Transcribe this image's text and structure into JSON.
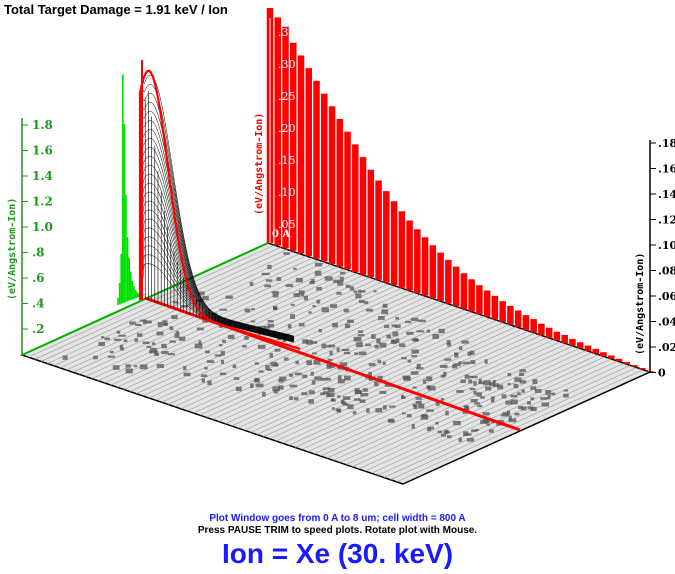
{
  "title": "Total Target Damage = 1.91 keV / Ion",
  "info": {
    "plot_window": "Plot Window goes from 0 A to 8 um;  cell width = 800 A",
    "hint": "Press PAUSE TRIM to speed plots.    Rotate plot with Mouse."
  },
  "ion_label": "Ion = Xe (30. keV)",
  "colors": {
    "left_axis": "#1a9a1a",
    "right_peak": "#ff0000",
    "left_peak": "#00e000",
    "info_text": "#1a1aff",
    "floor": "#d8d8d8",
    "damage_map": "#555555"
  },
  "chart_data": {
    "type": "area",
    "axes": {
      "left": {
        "label": "(eV/Angstrom-Ion)",
        "ticks": [
          "1.8",
          "1.6",
          "1.4",
          "1.2",
          "1.0",
          ".8",
          ".6",
          ".4",
          ".2"
        ],
        "range": [
          0,
          1.8
        ]
      },
      "back": {
        "label": "(eV/Angstrom-Ion)",
        "ticks": [
          ".35",
          ".30",
          ".25",
          ".20",
          ".15",
          ".10",
          ".05"
        ],
        "origin_label": "0 A",
        "range": [
          0,
          0.35
        ]
      },
      "right": {
        "label": "(eV/Angstrom-Ion)",
        "ticks": [
          ".18",
          ".16",
          ".14",
          ".12",
          ".10",
          ".08",
          ".06",
          ".04",
          ".02",
          "0"
        ],
        "range": [
          0,
          0.18
        ]
      }
    },
    "series": [
      {
        "values": [
          0.05,
          0.15,
          0.35,
          1.6,
          1.25,
          0.75,
          0.45,
          0.3,
          0.2,
          0.13,
          0.09,
          0.06,
          0.04,
          0.025,
          0.015,
          0.01,
          0.005,
          0.003,
          0.002,
          0.001
        ]
      },
      {
        "values": [
          0.35,
          0.34,
          0.33,
          0.31,
          0.295,
          0.28,
          0.265,
          0.25,
          0.235,
          0.22,
          0.205,
          0.19,
          0.175,
          0.16,
          0.148,
          0.136,
          0.125,
          0.114,
          0.104,
          0.095,
          0.087,
          0.079,
          0.072,
          0.065,
          0.059,
          0.053,
          0.048,
          0.043,
          0.039,
          0.035,
          0.031,
          0.028,
          0.025,
          0.022,
          0.02,
          0.017,
          0.015,
          0.013,
          0.012,
          0.01,
          0.009,
          0.008,
          0.007,
          0.006,
          0.005,
          0.004,
          0.003,
          0.0025,
          0.002,
          0.0015
        ]
      }
    ]
  }
}
